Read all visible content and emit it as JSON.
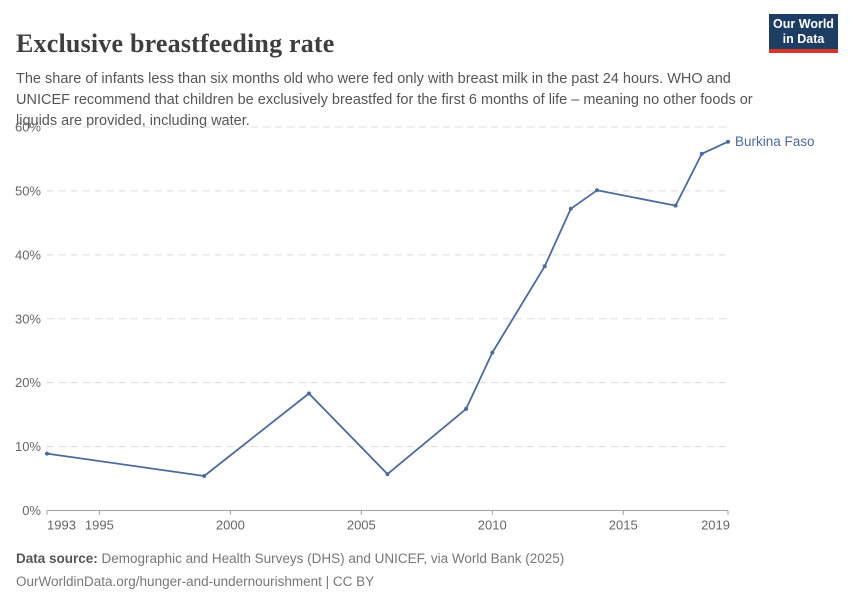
{
  "header": {
    "title": "Exclusive breastfeeding rate",
    "subtitle": "The share of infants less than six months old who were fed only with breast milk in the past 24 hours. WHO and UNICEF recommend that children be exclusively breastfed for the first 6 months of life – meaning no other foods or liquids are provided, including water.",
    "logo": {
      "line1": "Our World",
      "line2": "in Data",
      "bg_color": "#1d3d63",
      "bar_color": "#d8352a"
    }
  },
  "chart_data": {
    "type": "line",
    "title": "Exclusive breastfeeding rate",
    "xlabel": "",
    "ylabel": "",
    "x_range": [
      1993,
      2019
    ],
    "y_range": [
      0,
      60
    ],
    "grid": "horizontal-dashed",
    "legend_position": "end-of-line-label",
    "x_ticks": [
      1993,
      1995,
      2000,
      2005,
      2010,
      2015,
      2019
    ],
    "x_tick_labels": [
      "1993",
      "1995",
      "2000",
      "2005",
      "2010",
      "2015",
      "2019"
    ],
    "y_ticks": [
      0,
      10,
      20,
      30,
      40,
      50,
      60
    ],
    "y_tick_labels": [
      "0%",
      "10%",
      "20%",
      "30%",
      "40%",
      "50%",
      "60%"
    ],
    "series": [
      {
        "name": "Burkina Faso",
        "color": "#4c6a9c",
        "points": [
          [
            1993,
            8.9
          ],
          [
            1999,
            5.4
          ],
          [
            2003,
            18.3
          ],
          [
            2006,
            5.7
          ],
          [
            2009,
            15.9
          ],
          [
            2010,
            24.7
          ],
          [
            2012,
            38.2
          ],
          [
            2013,
            47.2
          ],
          [
            2014,
            50.1
          ],
          [
            2017,
            47.7
          ],
          [
            2018,
            55.8
          ],
          [
            2019,
            57.7
          ]
        ]
      }
    ],
    "colors": {
      "gridline": "#dddddd",
      "axis": "#a1a1a1",
      "tick_label": "#666666"
    }
  },
  "footer": {
    "source_label": "Data source:",
    "source_text": " Demographic and Health Surveys (DHS) and UNICEF, via World Bank (2025)",
    "link_line": "OurWorldinData.org/hunger-and-undernourishment | CC BY"
  }
}
